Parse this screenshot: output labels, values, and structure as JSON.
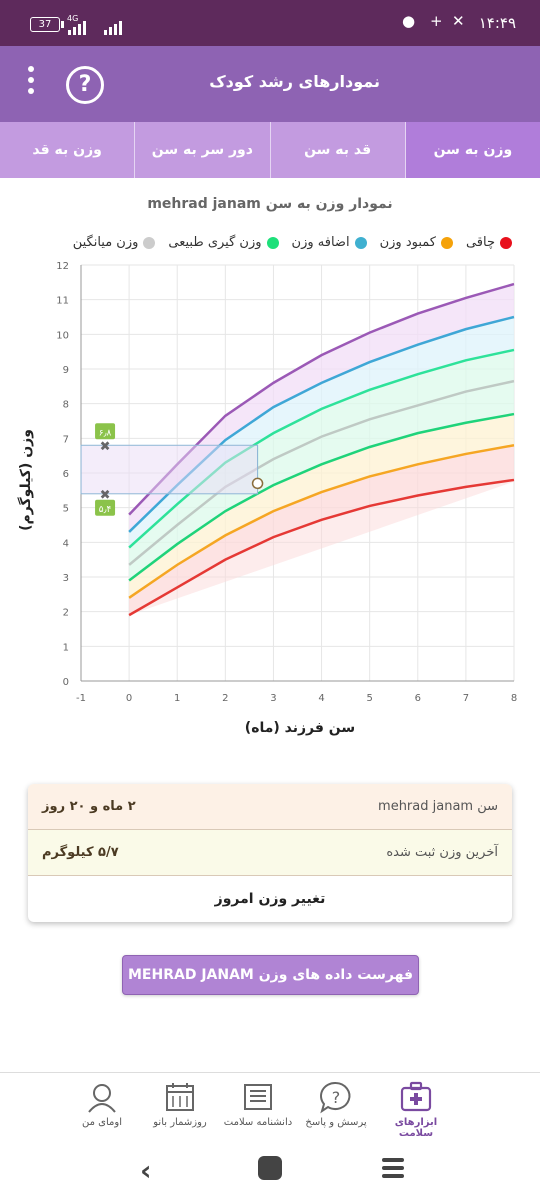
{
  "status_bar": {
    "time": "۱۴:۴۹",
    "battery": "37",
    "network": "4G"
  },
  "app_bar": {
    "title": "نمودارهای رشد کودک",
    "help_symbol": "?"
  },
  "tabs": [
    {
      "label": "وزن به سن",
      "active": true
    },
    {
      "label": "قد به سن",
      "active": false
    },
    {
      "label": "دور سر به سن",
      "active": false
    },
    {
      "label": "وزن به قد",
      "active": false
    }
  ],
  "chart_title": "نمودار وزن به سن mehrad janam",
  "legend": [
    {
      "label": "چاقی",
      "color": "#e8101c"
    },
    {
      "label": "کمبود وزن",
      "color": "#f5a20a"
    },
    {
      "label": "اضافه وزن",
      "color": "#3fb0d0"
    },
    {
      "label": "وزن گیری طبیعی",
      "color": "#1ee07a"
    },
    {
      "label": "وزن میانگین",
      "color": "#cccccc"
    }
  ],
  "chart_data": {
    "type": "line",
    "xlabel": "سن فرزند (ماه)",
    "ylabel": "وزن (کیلوگرم)",
    "xlim": [
      -1,
      8
    ],
    "ylim": [
      0,
      12
    ],
    "x_ticks": [
      -1,
      0,
      1,
      2,
      3,
      4,
      5,
      6,
      7,
      8
    ],
    "y_ticks": [
      0,
      1,
      2,
      3,
      4,
      5,
      6,
      7,
      8,
      9,
      10,
      11,
      12
    ],
    "x": [
      0,
      1,
      2,
      3,
      4,
      5,
      6,
      7,
      8
    ],
    "series": [
      {
        "color": "#9b59b6",
        "values": [
          4.8,
          6.25,
          7.65,
          8.6,
          9.4,
          10.05,
          10.6,
          11.05,
          11.45
        ]
      },
      {
        "color": "#3fa7d6",
        "values": [
          4.3,
          5.65,
          6.95,
          7.9,
          8.6,
          9.2,
          9.7,
          10.15,
          10.5
        ]
      },
      {
        "color": "#2ee29a",
        "values": [
          3.85,
          5.1,
          6.3,
          7.15,
          7.85,
          8.4,
          8.85,
          9.25,
          9.55
        ]
      },
      {
        "color": "#bfc9c4",
        "values": [
          3.35,
          4.5,
          5.6,
          6.4,
          7.05,
          7.55,
          7.95,
          8.35,
          8.65
        ]
      },
      {
        "color": "#1fd37a",
        "values": [
          2.9,
          3.95,
          4.9,
          5.65,
          6.25,
          6.75,
          7.15,
          7.45,
          7.7
        ]
      },
      {
        "color": "#f5a623",
        "values": [
          2.4,
          3.35,
          4.2,
          4.9,
          5.45,
          5.9,
          6.25,
          6.55,
          6.8
        ]
      },
      {
        "color": "#e53935",
        "values": [
          1.9,
          2.7,
          3.5,
          4.15,
          4.65,
          5.05,
          5.35,
          5.6,
          5.8
        ]
      }
    ],
    "band_fills": [
      "#f1def7",
      "#def3fb",
      "#dcfaeb",
      "#dcfaeb",
      "#fdf1d2",
      "#fcdada"
    ],
    "child_point": {
      "x": 2.67,
      "y": 5.7
    },
    "range_markers": {
      "x": -0.5,
      "upper": 6.8,
      "lower": 5.4,
      "upper_label": "۶٫۸",
      "lower_label": "۵٫۴",
      "box_color": "#8bc34a"
    }
  },
  "info_card": {
    "age_label": "سن mehrad janam",
    "age_value": "۲ ماه و ۲۰ روز",
    "weight_label": "آخرین وزن ثبت شده",
    "weight_value": "۵/۷ کیلوگرم",
    "action_label": "تغییر وزن امروز"
  },
  "list_button": "فهرست داده های وزن MEHRAD JANAM",
  "bottom_nav": [
    {
      "label": "ابزارهای سلامت",
      "icon": "health-tools-icon",
      "active": true
    },
    {
      "label": "پرسش و پاسخ",
      "icon": "question-answer-icon",
      "active": false
    },
    {
      "label": "دانشنامه سلامت",
      "icon": "encyclopedia-icon",
      "active": false
    },
    {
      "label": "روزشمار بانو",
      "icon": "calendar-icon",
      "active": false
    },
    {
      "label": "اومای من",
      "icon": "profile-icon",
      "active": false
    }
  ]
}
